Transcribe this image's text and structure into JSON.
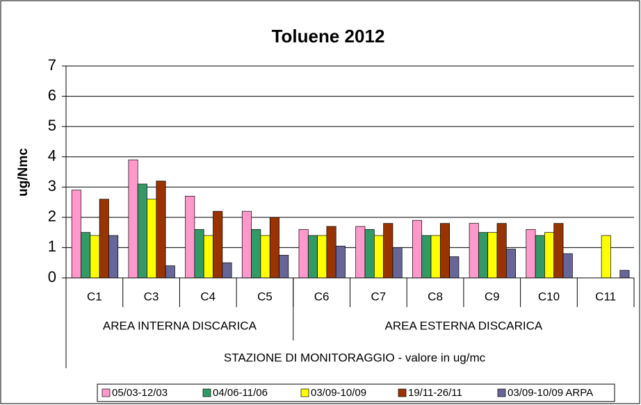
{
  "chart_data": {
    "type": "bar",
    "title": "Toluene 2012",
    "y_label": "ug/Nmc",
    "x_label": "STAZIONE DI MONITORAGGIO - valore in ug/mc",
    "categories": [
      "C1",
      "C3",
      "C4",
      "C5",
      "C6",
      "C7",
      "C8",
      "C9",
      "C10",
      "C11"
    ],
    "groups": [
      {
        "name": "AREA INTERNA DISCARICA",
        "count": 4
      },
      {
        "name": "AREA ESTERNA DISCARICA",
        "count": 6
      }
    ],
    "series": [
      {
        "name": "05/03-12/03",
        "color": "#ff99cc",
        "values": [
          2.9,
          3.9,
          2.7,
          2.2,
          1.6,
          1.7,
          1.9,
          1.8,
          1.6,
          null
        ]
      },
      {
        "name": "04/06-11/06",
        "color": "#339966",
        "values": [
          1.5,
          3.1,
          1.6,
          1.6,
          1.4,
          1.6,
          1.4,
          1.5,
          1.4,
          null
        ]
      },
      {
        "name": "03/09-10/09",
        "color": "#ffff00",
        "values": [
          1.4,
          2.6,
          1.4,
          1.4,
          1.4,
          1.4,
          1.4,
          1.5,
          1.5,
          1.4
        ]
      },
      {
        "name": "19/11-26/11",
        "color": "#993300",
        "values": [
          2.6,
          3.2,
          2.2,
          2.0,
          1.7,
          1.8,
          1.8,
          1.8,
          1.8,
          null
        ]
      },
      {
        "name": "03/09-10/09 ARPA",
        "color": "#666699",
        "values": [
          1.4,
          0.4,
          0.5,
          0.75,
          1.05,
          1.0,
          0.7,
          0.95,
          0.8,
          0.25
        ]
      }
    ],
    "ylim": [
      0,
      7
    ],
    "yticks": [
      0,
      1,
      2,
      3,
      4,
      5,
      6,
      7
    ],
    "grid": true,
    "legend": "bottom"
  }
}
